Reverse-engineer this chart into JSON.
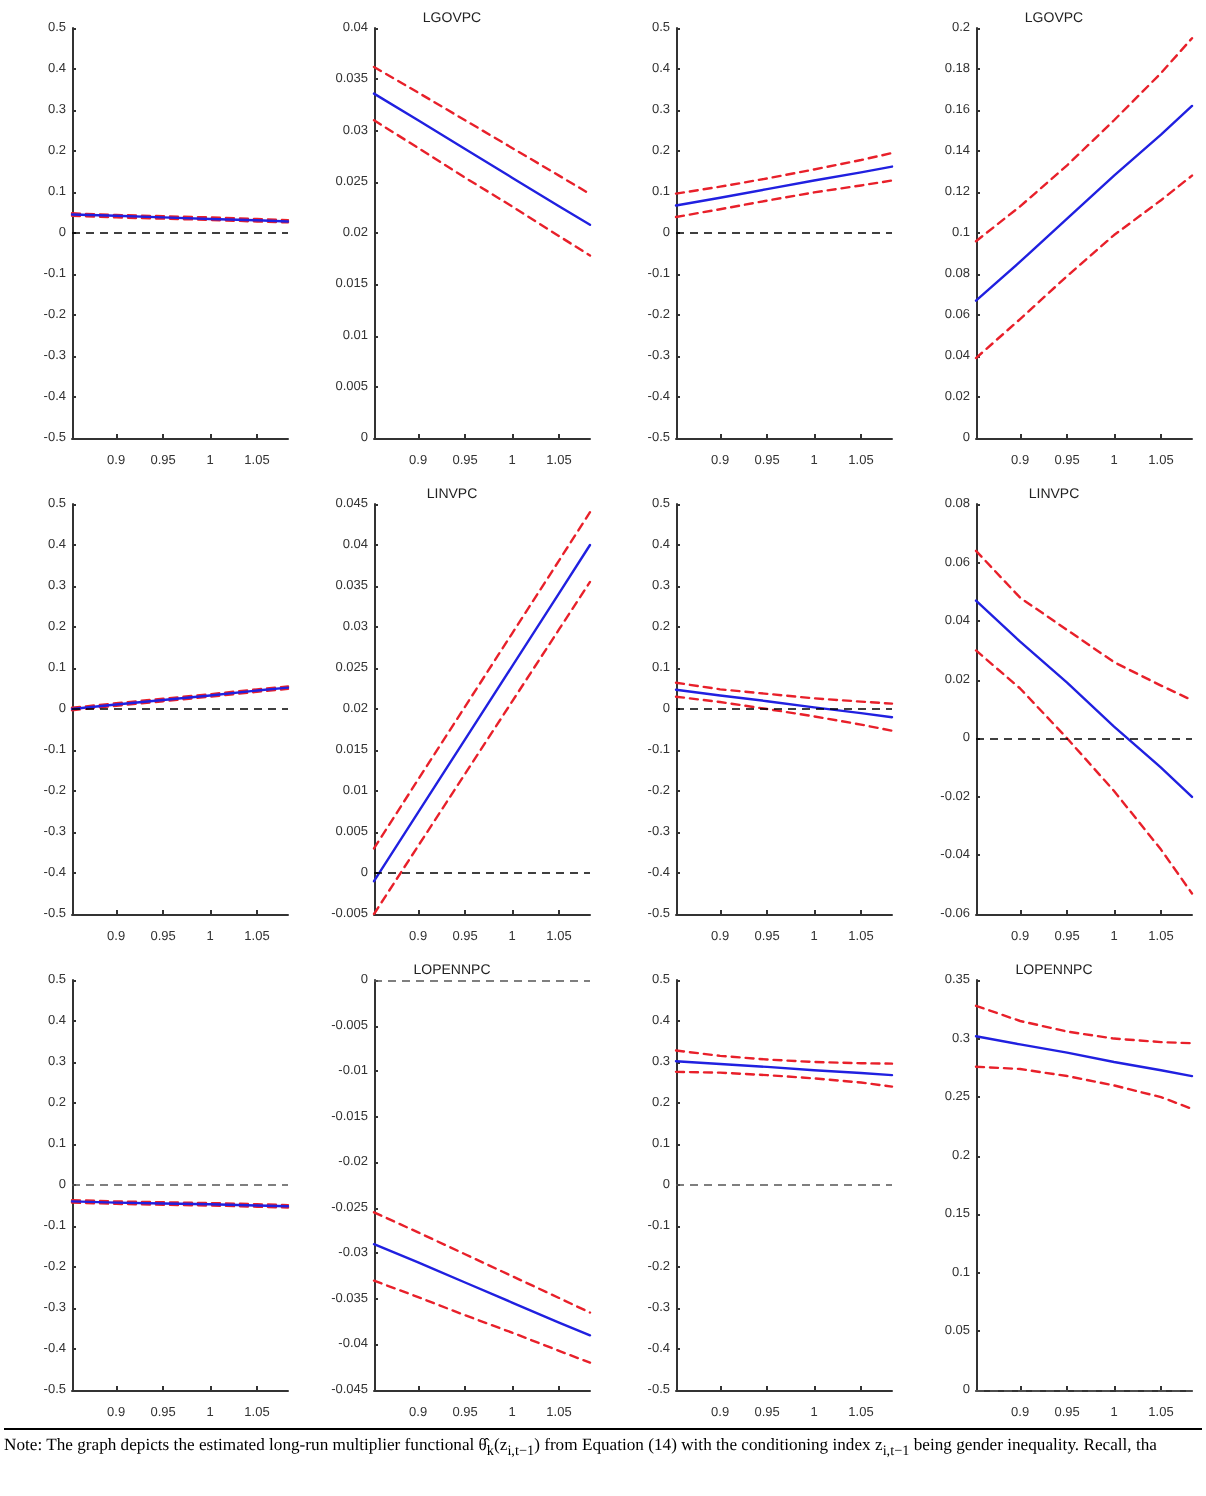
{
  "chart_data": [
    {
      "type": "line",
      "marker": "none",
      "xlim": [
        0.853,
        1.083
      ],
      "xticks": [
        0.9,
        0.95,
        1,
        1.05
      ],
      "ylim": [
        -0.5,
        0.5
      ],
      "yticks": [
        -0.5,
        -0.4,
        -0.3,
        -0.2,
        -0.1,
        0,
        0.1,
        0.2,
        0.3,
        0.4,
        0.5
      ],
      "x": [
        0.853,
        0.9,
        0.95,
        1,
        1.05,
        1.083
      ],
      "series": [
        {
          "color": "#e8202a",
          "line_style": "dashed",
          "values": [
            0.048,
            0.044,
            0.041,
            0.038,
            0.034,
            0.031
          ]
        },
        {
          "color": "#e8202a",
          "line_style": "dashed",
          "values": [
            0.042,
            0.038,
            0.035,
            0.032,
            0.028,
            0.026
          ]
        },
        {
          "color": "#2020e0",
          "line_style": "solid",
          "values": [
            0.045,
            0.042,
            0.038,
            0.034,
            0.031,
            0.028
          ]
        }
      ],
      "ref_lines": [
        {
          "axis": "y",
          "value": 0,
          "color": "#000000",
          "line_style": "dashed"
        }
      ]
    },
    {
      "type": "line",
      "title": "LGOVPC",
      "marker": "none",
      "xlim": [
        0.853,
        1.083
      ],
      "xticks": [
        0.9,
        0.95,
        1,
        1.05
      ],
      "ylim": [
        0,
        0.04
      ],
      "yticks": [
        0,
        0.005,
        0.01,
        0.015,
        0.02,
        0.025,
        0.03,
        0.035,
        0.04
      ],
      "x": [
        0.853,
        0.9,
        0.95,
        1,
        1.05,
        1.083
      ],
      "series": [
        {
          "color": "#e8202a",
          "line_style": "dashed",
          "values": [
            0.0362,
            0.0337,
            0.031,
            0.0283,
            0.0256,
            0.0238
          ]
        },
        {
          "color": "#e8202a",
          "line_style": "dashed",
          "values": [
            0.031,
            0.0283,
            0.0254,
            0.0226,
            0.0197,
            0.0178
          ]
        },
        {
          "color": "#2020e0",
          "line_style": "solid",
          "values": [
            0.0336,
            0.031,
            0.0282,
            0.0254,
            0.0226,
            0.0208
          ]
        }
      ]
    },
    {
      "type": "line",
      "marker": "none",
      "xlim": [
        0.853,
        1.083
      ],
      "xticks": [
        0.9,
        0.95,
        1,
        1.05
      ],
      "ylim": [
        -0.5,
        0.5
      ],
      "yticks": [
        -0.5,
        -0.4,
        -0.3,
        -0.2,
        -0.1,
        0,
        0.1,
        0.2,
        0.3,
        0.4,
        0.5
      ],
      "x": [
        0.853,
        0.9,
        0.95,
        1,
        1.05,
        1.083
      ],
      "series": [
        {
          "color": "#e8202a",
          "line_style": "dashed",
          "values": [
            0.096,
            0.113,
            0.133,
            0.155,
            0.178,
            0.195
          ]
        },
        {
          "color": "#e8202a",
          "line_style": "dashed",
          "values": [
            0.039,
            0.058,
            0.079,
            0.099,
            0.116,
            0.128
          ]
        },
        {
          "color": "#2020e0",
          "line_style": "solid",
          "values": [
            0.067,
            0.086,
            0.107,
            0.128,
            0.148,
            0.162
          ]
        }
      ],
      "ref_lines": [
        {
          "axis": "y",
          "value": 0,
          "color": "#000000",
          "line_style": "dashed"
        }
      ]
    },
    {
      "type": "line",
      "title": "LGOVPC",
      "marker": "none",
      "xlim": [
        0.853,
        1.083
      ],
      "xticks": [
        0.9,
        0.95,
        1,
        1.05
      ],
      "ylim": [
        0,
        0.2
      ],
      "yticks": [
        0,
        0.02,
        0.04,
        0.06,
        0.08,
        0.1,
        0.12,
        0.14,
        0.16,
        0.18,
        0.2
      ],
      "x": [
        0.853,
        0.9,
        0.95,
        1,
        1.05,
        1.083
      ],
      "series": [
        {
          "color": "#e8202a",
          "line_style": "dashed",
          "values": [
            0.096,
            0.113,
            0.133,
            0.155,
            0.178,
            0.195
          ]
        },
        {
          "color": "#e8202a",
          "line_style": "dashed",
          "values": [
            0.039,
            0.058,
            0.079,
            0.099,
            0.116,
            0.128
          ]
        },
        {
          "color": "#2020e0",
          "line_style": "solid",
          "values": [
            0.067,
            0.086,
            0.107,
            0.128,
            0.148,
            0.162
          ]
        }
      ]
    },
    {
      "type": "line",
      "marker": "none",
      "xlim": [
        0.853,
        1.083
      ],
      "xticks": [
        0.9,
        0.95,
        1,
        1.05
      ],
      "ylim": [
        -0.5,
        0.5
      ],
      "yticks": [
        -0.5,
        -0.4,
        -0.3,
        -0.2,
        -0.1,
        0,
        0.1,
        0.2,
        0.3,
        0.4,
        0.5
      ],
      "x": [
        0.853,
        0.9,
        0.95,
        1,
        1.05,
        1.083
      ],
      "series": [
        {
          "color": "#e8202a",
          "line_style": "dashed",
          "values": [
            0.003,
            0.014,
            0.025,
            0.036,
            0.048,
            0.055
          ]
        },
        {
          "color": "#e8202a",
          "line_style": "dashed",
          "values": [
            -0.003,
            0.008,
            0.019,
            0.03,
            0.042,
            0.049
          ]
        },
        {
          "color": "#2020e0",
          "line_style": "solid",
          "values": [
            0,
            0.011,
            0.022,
            0.033,
            0.045,
            0.052
          ]
        }
      ],
      "ref_lines": [
        {
          "axis": "y",
          "value": 0,
          "color": "#000000",
          "line_style": "dashed"
        }
      ]
    },
    {
      "type": "line",
      "title": "LINVPC",
      "marker": "none",
      "xlim": [
        0.853,
        1.083
      ],
      "xticks": [
        0.9,
        0.95,
        1,
        1.05
      ],
      "ylim": [
        -0.005,
        0.045
      ],
      "yticks": [
        -0.005,
        0,
        0.005,
        0.01,
        0.015,
        0.02,
        0.025,
        0.03,
        0.035,
        0.04,
        0.045
      ],
      "x": [
        0.853,
        0.9,
        0.95,
        1,
        1.05,
        1.083
      ],
      "series": [
        {
          "color": "#e8202a",
          "line_style": "dashed",
          "values": [
            0.003,
            0.0114,
            0.0203,
            0.0292,
            0.0381,
            0.044
          ]
        },
        {
          "color": "#e8202a",
          "line_style": "dashed",
          "values": [
            -0.005,
            0.0033,
            0.0121,
            0.0209,
            0.0297,
            0.0355
          ]
        },
        {
          "color": "#2020e0",
          "line_style": "solid",
          "values": [
            -0.001,
            0.0074,
            0.0163,
            0.0252,
            0.0341,
            0.04
          ]
        }
      ],
      "ref_lines": [
        {
          "axis": "y",
          "value": 0,
          "color": "#000000",
          "line_style": "dashed"
        }
      ]
    },
    {
      "type": "line",
      "marker": "none",
      "xlim": [
        0.853,
        1.083
      ],
      "xticks": [
        0.9,
        0.95,
        1,
        1.05
      ],
      "ylim": [
        -0.5,
        0.5
      ],
      "yticks": [
        -0.5,
        -0.4,
        -0.3,
        -0.2,
        -0.1,
        0,
        0.1,
        0.2,
        0.3,
        0.4,
        0.5
      ],
      "x": [
        0.853,
        0.9,
        0.95,
        1,
        1.05,
        1.083
      ],
      "series": [
        {
          "color": "#e8202a",
          "line_style": "dashed",
          "values": [
            0.064,
            0.048,
            0.037,
            0.026,
            0.018,
            0.013
          ]
        },
        {
          "color": "#e8202a",
          "line_style": "dashed",
          "values": [
            0.03,
            0.017,
            0,
            -0.018,
            -0.038,
            -0.053
          ]
        },
        {
          "color": "#2020e0",
          "line_style": "solid",
          "values": [
            0.047,
            0.033,
            0.019,
            0.004,
            -0.01,
            -0.02
          ]
        }
      ],
      "ref_lines": [
        {
          "axis": "y",
          "value": 0,
          "color": "#000000",
          "line_style": "dashed"
        }
      ]
    },
    {
      "type": "line",
      "title": "LINVPC",
      "marker": "none",
      "xlim": [
        0.853,
        1.083
      ],
      "xticks": [
        0.9,
        0.95,
        1,
        1.05
      ],
      "ylim": [
        -0.06,
        0.08
      ],
      "yticks": [
        -0.06,
        -0.04,
        -0.02,
        0,
        0.02,
        0.04,
        0.06,
        0.08
      ],
      "x": [
        0.853,
        0.9,
        0.95,
        1,
        1.05,
        1.083
      ],
      "series": [
        {
          "color": "#e8202a",
          "line_style": "dashed",
          "values": [
            0.064,
            0.048,
            0.037,
            0.026,
            0.018,
            0.013
          ]
        },
        {
          "color": "#e8202a",
          "line_style": "dashed",
          "values": [
            0.03,
            0.017,
            0,
            -0.018,
            -0.038,
            -0.053
          ]
        },
        {
          "color": "#2020e0",
          "line_style": "solid",
          "values": [
            0.047,
            0.033,
            0.019,
            0.004,
            -0.01,
            -0.02
          ]
        }
      ],
      "ref_lines": [
        {
          "axis": "y",
          "value": 0,
          "color": "#000000",
          "line_style": "dashed"
        }
      ]
    },
    {
      "type": "line",
      "marker": "none",
      "xlim": [
        0.853,
        1.083
      ],
      "xticks": [
        0.9,
        0.95,
        1,
        1.05
      ],
      "ylim": [
        -0.5,
        0.5
      ],
      "yticks": [
        -0.5,
        -0.4,
        -0.3,
        -0.2,
        -0.1,
        0,
        0.1,
        0.2,
        0.3,
        0.4,
        0.5
      ],
      "x": [
        0.853,
        0.9,
        0.95,
        1,
        1.05,
        1.083
      ],
      "series": [
        {
          "color": "#e8202a",
          "line_style": "dashed",
          "values": [
            -0.037,
            -0.04,
            -0.042,
            -0.044,
            -0.047,
            -0.049
          ]
        },
        {
          "color": "#e8202a",
          "line_style": "dashed",
          "values": [
            -0.043,
            -0.046,
            -0.048,
            -0.05,
            -0.053,
            -0.055
          ]
        },
        {
          "color": "#2020e0",
          "line_style": "solid",
          "values": [
            -0.04,
            -0.043,
            -0.045,
            -0.047,
            -0.05,
            -0.052
          ]
        }
      ],
      "ref_lines": [
        {
          "axis": "y",
          "value": 0,
          "color": "#555555",
          "line_style": "dashed"
        }
      ]
    },
    {
      "type": "line",
      "title": "LOPENNPC",
      "marker": "none",
      "xlim": [
        0.853,
        1.083
      ],
      "xticks": [
        0.9,
        0.95,
        1,
        1.05
      ],
      "ylim": [
        -0.045,
        0
      ],
      "yticks": [
        -0.045,
        -0.04,
        -0.035,
        -0.03,
        -0.025,
        -0.02,
        -0.015,
        -0.01,
        -0.005,
        0
      ],
      "x": [
        0.853,
        0.9,
        0.95,
        1,
        1.05,
        1.083
      ],
      "series": [
        {
          "color": "#e8202a",
          "line_style": "dashed",
          "values": [
            -0.0255,
            -0.0277,
            -0.0301,
            -0.0325,
            -0.0349,
            -0.0365
          ]
        },
        {
          "color": "#e8202a",
          "line_style": "dashed",
          "values": [
            -0.033,
            -0.0348,
            -0.0368,
            -0.0387,
            -0.0407,
            -0.042
          ]
        },
        {
          "color": "#2020e0",
          "line_style": "solid",
          "values": [
            -0.029,
            -0.031,
            -0.0332,
            -0.0354,
            -0.0376,
            -0.039
          ]
        }
      ],
      "ref_lines": [
        {
          "axis": "y",
          "value": 0,
          "color": "#555555",
          "line_style": "dashed"
        }
      ]
    },
    {
      "type": "line",
      "marker": "none",
      "xlim": [
        0.853,
        1.083
      ],
      "xticks": [
        0.9,
        0.95,
        1,
        1.05
      ],
      "ylim": [
        -0.5,
        0.5
      ],
      "yticks": [
        -0.5,
        -0.4,
        -0.3,
        -0.2,
        -0.1,
        0,
        0.1,
        0.2,
        0.3,
        0.4,
        0.5
      ],
      "x": [
        0.853,
        0.9,
        0.95,
        1,
        1.05,
        1.083
      ],
      "series": [
        {
          "color": "#e8202a",
          "line_style": "dashed",
          "values": [
            0.328,
            0.315,
            0.306,
            0.3,
            0.297,
            0.296
          ]
        },
        {
          "color": "#e8202a",
          "line_style": "dashed",
          "values": [
            0.276,
            0.274,
            0.268,
            0.26,
            0.25,
            0.24
          ]
        },
        {
          "color": "#2020e0",
          "line_style": "solid",
          "values": [
            0.302,
            0.295,
            0.288,
            0.28,
            0.273,
            0.268
          ]
        }
      ],
      "ref_lines": [
        {
          "axis": "y",
          "value": 0,
          "color": "#555555",
          "line_style": "dashed"
        }
      ]
    },
    {
      "type": "line",
      "title": "LOPENNPC",
      "marker": "none",
      "xlim": [
        0.853,
        1.083
      ],
      "xticks": [
        0.9,
        0.95,
        1,
        1.05
      ],
      "ylim": [
        0,
        0.35
      ],
      "yticks": [
        0,
        0.05,
        0.1,
        0.15,
        0.2,
        0.25,
        0.3,
        0.35
      ],
      "x": [
        0.853,
        0.9,
        0.95,
        1,
        1.05,
        1.083
      ],
      "series": [
        {
          "color": "#e8202a",
          "line_style": "dashed",
          "values": [
            0.328,
            0.315,
            0.306,
            0.3,
            0.297,
            0.296
          ]
        },
        {
          "color": "#e8202a",
          "line_style": "dashed",
          "values": [
            0.276,
            0.274,
            0.268,
            0.26,
            0.25,
            0.24
          ]
        },
        {
          "color": "#2020e0",
          "line_style": "solid",
          "values": [
            0.302,
            0.295,
            0.288,
            0.28,
            0.273,
            0.268
          ]
        }
      ],
      "ref_lines": [
        {
          "axis": "y",
          "value": 0,
          "color": "#555555",
          "line_style": "dashed"
        }
      ],
      "annotations": [
        "Note: The graph depicts the estimated long-run multiplier functional θ̂$_{k}$(z$_{i,t−1}$) from Equation (14) with the conditioning index z$_{i,t−1}$ being gender inequality. Recall, tha"
      ]
    }
  ]
}
